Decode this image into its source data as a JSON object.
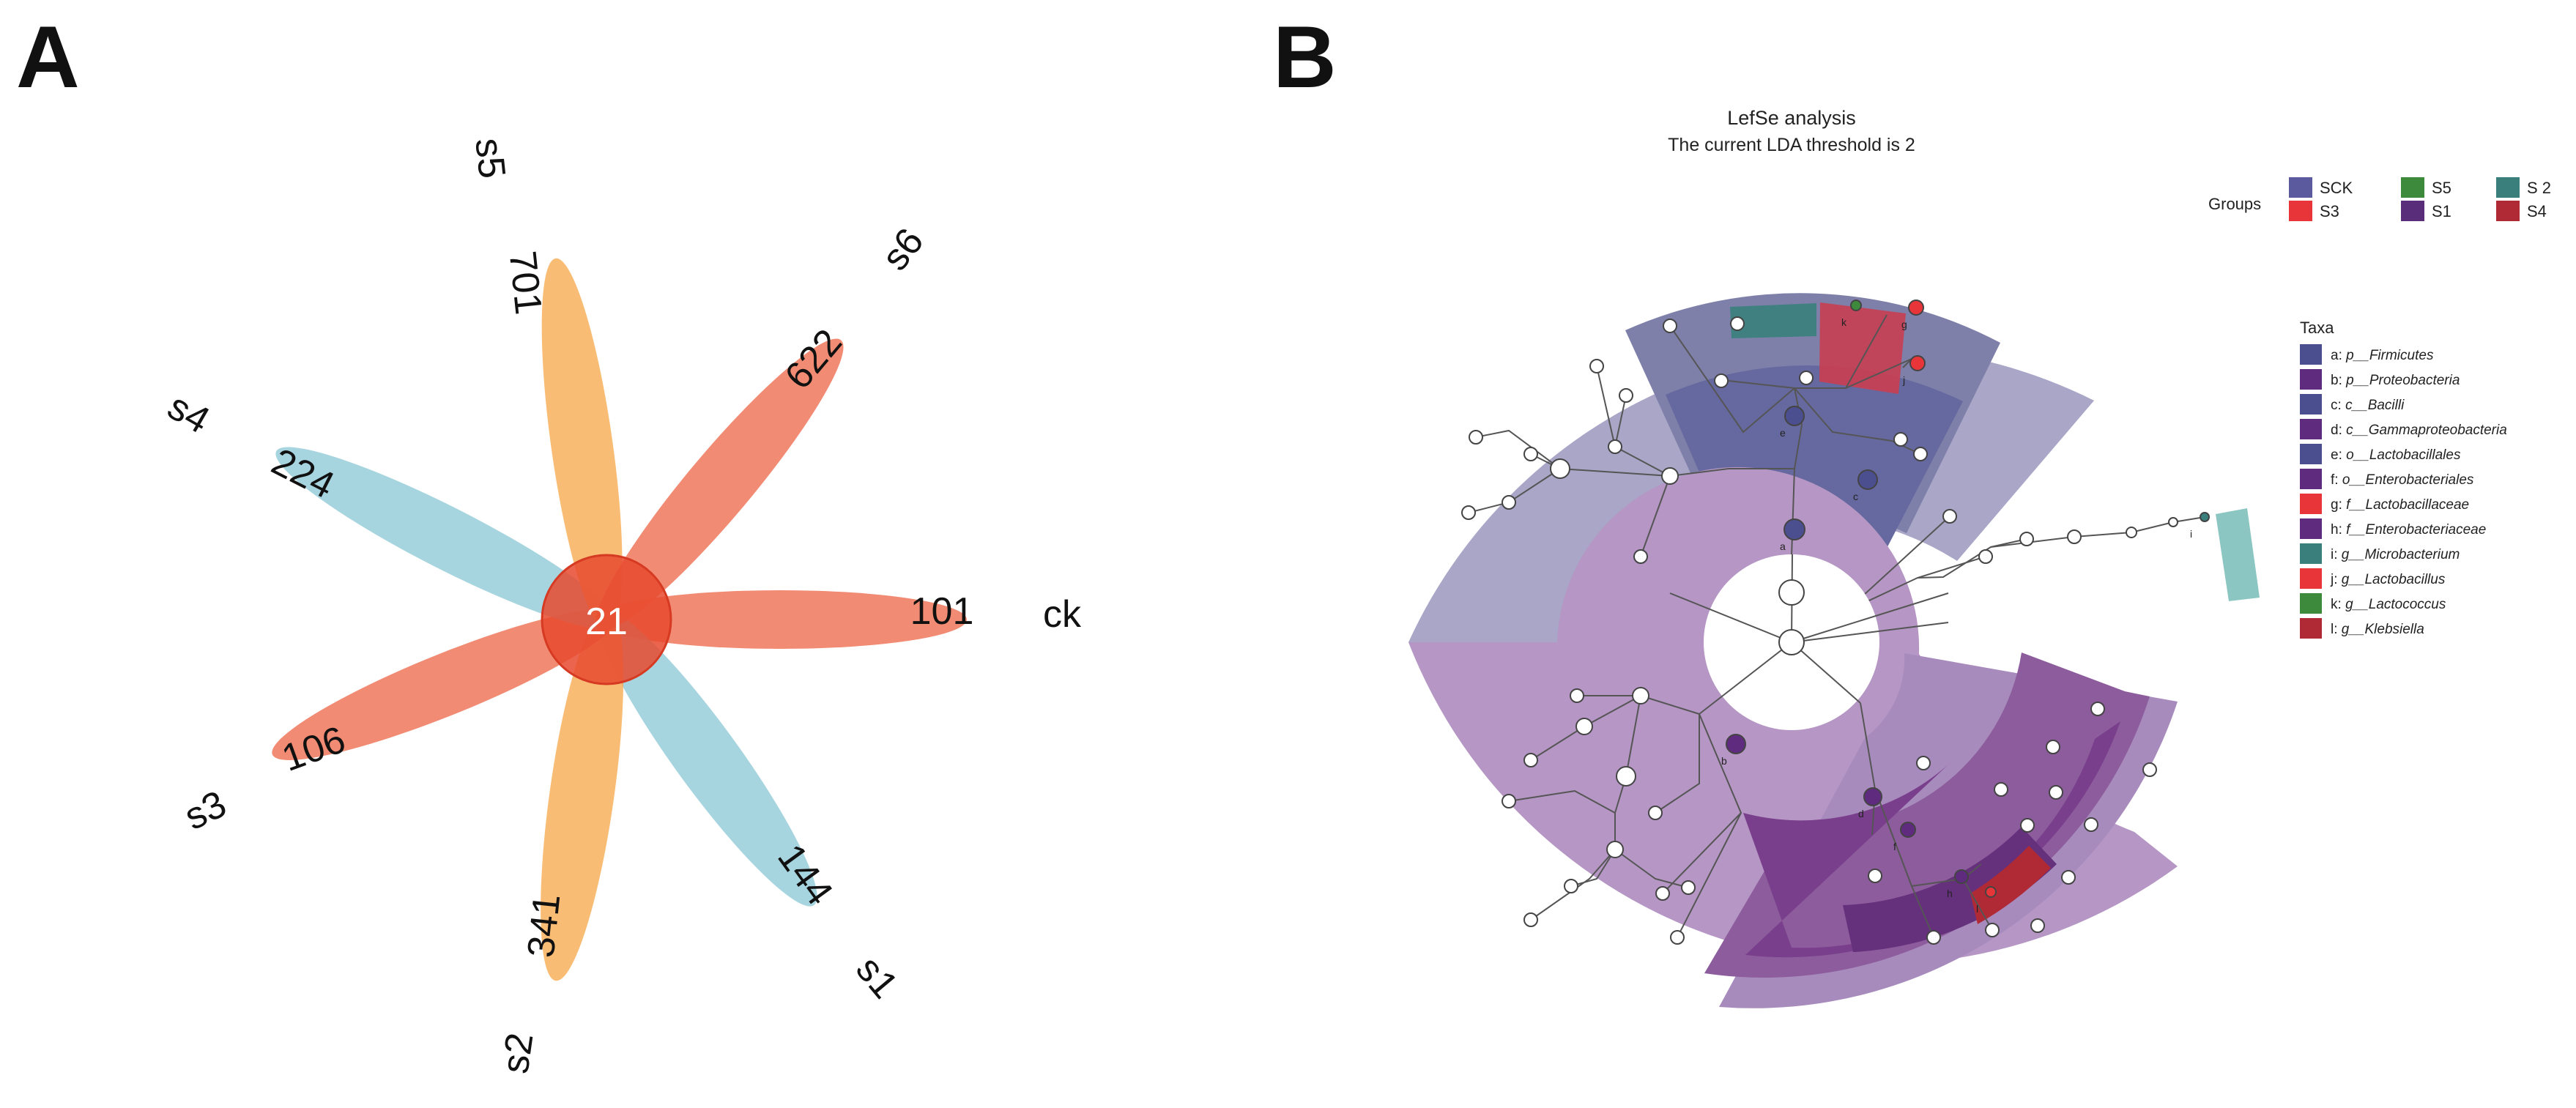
{
  "panels": {
    "a_label": "A",
    "b_label": "B"
  },
  "venn": {
    "center_value": "21",
    "petals": [
      {
        "name": "ck",
        "unique": "101",
        "color": "#ee6a4b"
      },
      {
        "name": "s1",
        "unique": "144",
        "color": "#8ec9d6"
      },
      {
        "name": "s2",
        "unique": "341",
        "color": "#f7a94e"
      },
      {
        "name": "s3",
        "unique": "106",
        "color": "#ee6a4b"
      },
      {
        "name": "s4",
        "unique": "224",
        "color": "#8ec9d6"
      },
      {
        "name": "s5",
        "unique": "701",
        "color": "#f7a94e"
      },
      {
        "name": "s6",
        "unique": "622",
        "color": "#ee6a4b"
      }
    ]
  },
  "lefse": {
    "title": "LefSe analysis",
    "subtitle": "The current LDA threshold is 2",
    "groups_label": "Groups",
    "groups": [
      {
        "name": "SCK",
        "color": "#5b5a9e"
      },
      {
        "name": "S5",
        "color": "#3d8a3d"
      },
      {
        "name": "S 2",
        "color": "#3a7f7c"
      },
      {
        "name": "S3",
        "color": "#e8353a"
      },
      {
        "name": "S1",
        "color": "#5a2d7a"
      },
      {
        "name": "S4",
        "color": "#b02a36"
      }
    ],
    "taxa_label": "Taxa",
    "taxa": [
      {
        "key": "a:",
        "name": "p__Firmicutes",
        "color": "#4c4f8f"
      },
      {
        "key": "b:",
        "name": "p__Proteobacteria",
        "color": "#5e2b7e"
      },
      {
        "key": "c:",
        "name": "c__Bacilli",
        "color": "#4c4f8f"
      },
      {
        "key": "d:",
        "name": "c__Gammaproteobacteria",
        "color": "#5e2b7e"
      },
      {
        "key": "e:",
        "name": "o__Lactobacillales",
        "color": "#4c4f8f"
      },
      {
        "key": "f:",
        "name": "o__Enterobacteriales",
        "color": "#5e2b7e"
      },
      {
        "key": "g:",
        "name": "f__Lactobacillaceae",
        "color": "#e8353a"
      },
      {
        "key": "h:",
        "name": "f__Enterobacteriaceae",
        "color": "#5e2b7e"
      },
      {
        "key": "i:",
        "name": "g__Microbacterium",
        "color": "#3a7f7c"
      },
      {
        "key": "j:",
        "name": "g__Lactobacillus",
        "color": "#e8353a"
      },
      {
        "key": "k:",
        "name": "g__Lactococcus",
        "color": "#3d8a3d"
      },
      {
        "key": "l:",
        "name": "g__Klebsiella",
        "color": "#b02a36"
      }
    ],
    "node_letters": [
      "a",
      "b",
      "c",
      "d",
      "e",
      "f",
      "g",
      "h",
      "i",
      "j",
      "k",
      "l"
    ]
  }
}
